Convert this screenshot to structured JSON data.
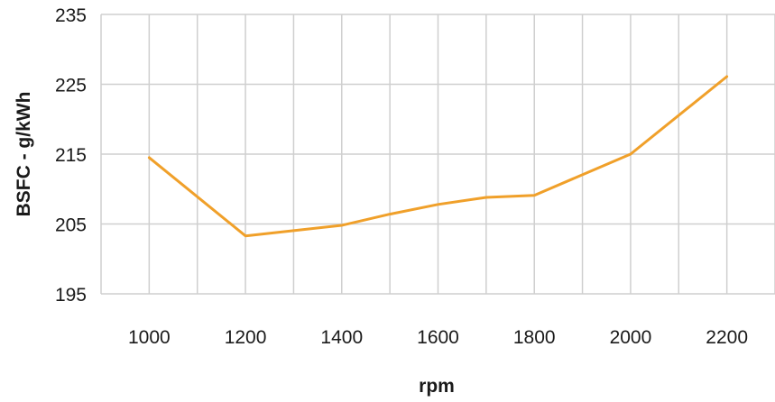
{
  "chart_data": {
    "type": "line",
    "title": "",
    "xlabel": "rpm",
    "ylabel": "BSFC - g/kWh",
    "x_ticks": [
      "1000",
      "1200",
      "1400",
      "1600",
      "1800",
      "2000",
      "2200"
    ],
    "y_ticks": [
      "195",
      "205",
      "215",
      "225",
      "235"
    ],
    "xlim": [
      900,
      2300
    ],
    "ylim": [
      195,
      235
    ],
    "grid": true,
    "legend": "none",
    "series": [
      {
        "color": "#f0a02a",
        "x": [
          1000,
          1200,
          1400,
          1500,
          1600,
          1700,
          1800,
          2000,
          2200
        ],
        "y": [
          214.5,
          203.3,
          204.8,
          206.4,
          207.8,
          208.8,
          209.1,
          215.0,
          226.1
        ]
      }
    ]
  }
}
